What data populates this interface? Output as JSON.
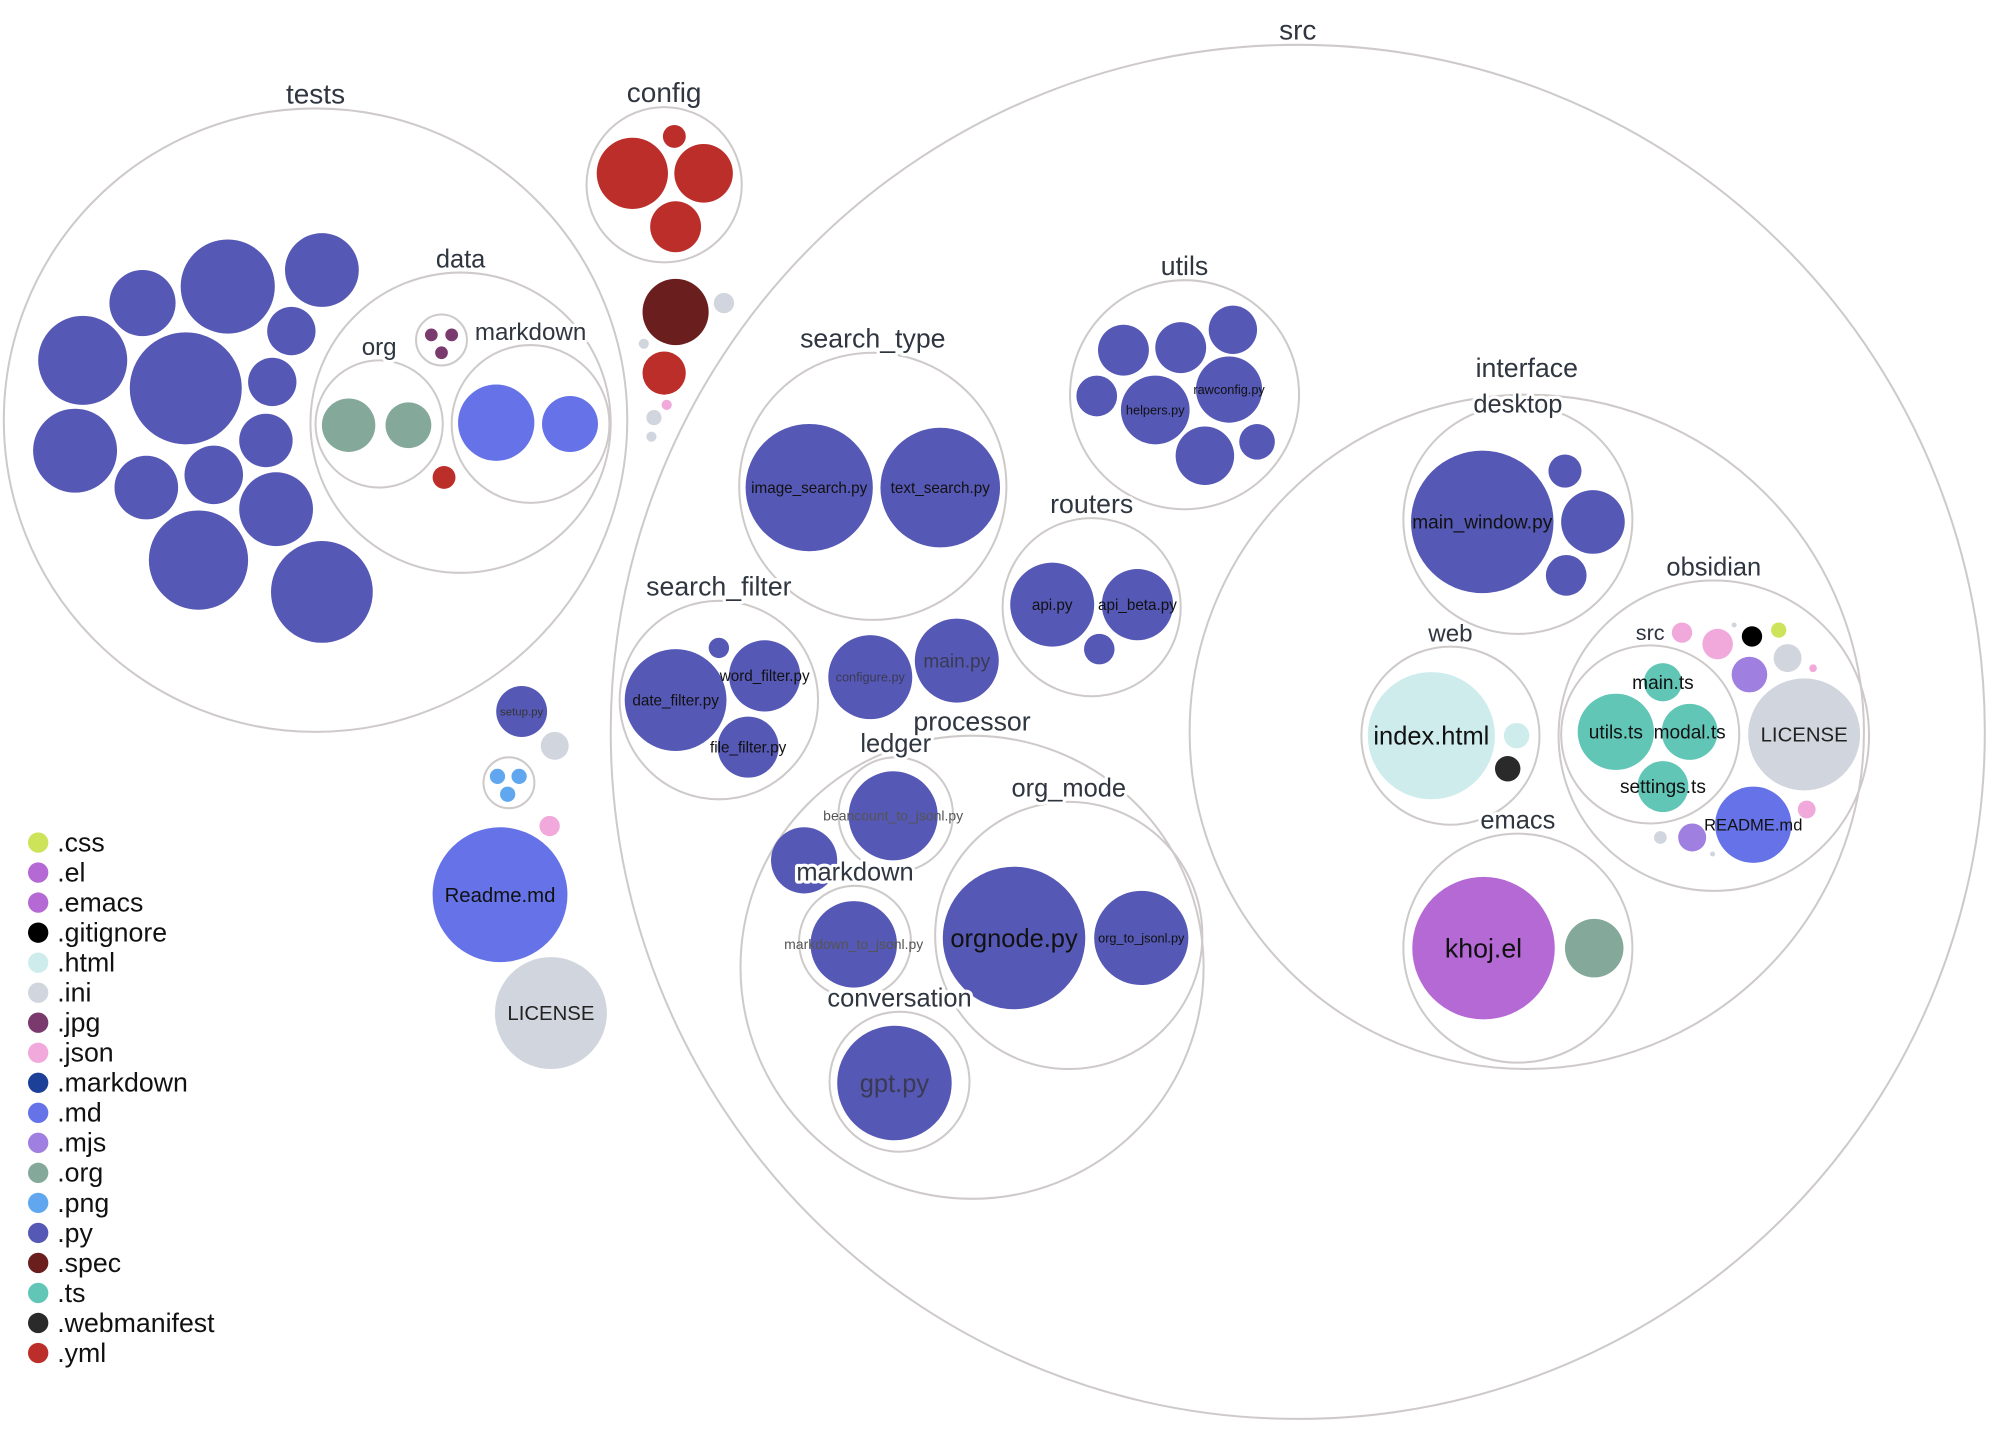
{
  "chart_data": {
    "type": "circle-packing",
    "nodes": [
      {
        "type": "dir",
        "name": "tests"
      },
      {
        "type": "dir",
        "name": "data"
      },
      {
        "type": "dir",
        "name": "org"
      },
      {
        "type": "dir",
        "name": "markdown"
      },
      {
        "type": "dir",
        "name": ""
      },
      {
        "type": "file",
        "ext": ".jpg"
      },
      {
        "type": "file",
        "ext": ".jpg"
      },
      {
        "type": "file",
        "ext": ".jpg"
      },
      {
        "type": "file",
        "ext": ".org"
      },
      {
        "type": "file",
        "ext": ".org"
      },
      {
        "type": "file",
        "ext": ".md"
      },
      {
        "type": "file",
        "ext": ".md"
      },
      {
        "type": "file",
        "ext": ".yml"
      },
      {
        "type": "file",
        "ext": ".py"
      },
      {
        "type": "file",
        "ext": ".py"
      },
      {
        "type": "file",
        "ext": ".py"
      },
      {
        "type": "file",
        "ext": ".py"
      },
      {
        "type": "file",
        "ext": ".py"
      },
      {
        "type": "file",
        "ext": ".py"
      },
      {
        "type": "file",
        "ext": ".py"
      },
      {
        "type": "file",
        "ext": ".py"
      },
      {
        "type": "file",
        "ext": ".py"
      },
      {
        "type": "file",
        "ext": ".py"
      },
      {
        "type": "file",
        "ext": ".py"
      },
      {
        "type": "file",
        "ext": ".py"
      },
      {
        "type": "file",
        "ext": ".py"
      },
      {
        "type": "file",
        "ext": ".py"
      },
      {
        "type": "dir",
        "name": "config"
      },
      {
        "type": "file",
        "ext": ".yml"
      },
      {
        "type": "file",
        "ext": ".yml"
      },
      {
        "type": "file",
        "ext": ".yml"
      },
      {
        "type": "file",
        "ext": ".yml"
      },
      {
        "type": "file",
        "ext": ".spec"
      },
      {
        "type": "file",
        "ext": ".ini"
      },
      {
        "type": "file",
        "ext": ".yml"
      },
      {
        "type": "file",
        "ext": ".ini"
      },
      {
        "type": "file",
        "ext": ".ini"
      },
      {
        "type": "file",
        "ext": ".ini"
      },
      {
        "type": "file",
        "ext": ".json"
      },
      {
        "type": "file",
        "ext": ".py",
        "name": "setup.py"
      },
      {
        "type": "file",
        "ext": ".ini"
      },
      {
        "type": "dir",
        "name": ""
      },
      {
        "type": "file",
        "ext": ".png"
      },
      {
        "type": "file",
        "ext": ".png"
      },
      {
        "type": "file",
        "ext": ".png"
      },
      {
        "type": "file",
        "ext": ".json"
      },
      {
        "type": "file",
        "ext": ".md",
        "name": "Readme.md"
      },
      {
        "type": "file",
        "ext": ".ini",
        "name": "LICENSE"
      },
      {
        "type": "dir",
        "name": "src"
      },
      {
        "type": "dir",
        "name": "search_type"
      },
      {
        "type": "file",
        "ext": ".py",
        "name": "image_search.py"
      },
      {
        "type": "file",
        "ext": ".py",
        "name": "text_search.py"
      },
      {
        "type": "dir",
        "name": "utils"
      },
      {
        "type": "file",
        "ext": ".py"
      },
      {
        "type": "file",
        "ext": ".py"
      },
      {
        "type": "file",
        "ext": ".py"
      },
      {
        "type": "file",
        "ext": ".py"
      },
      {
        "type": "file",
        "ext": ".py",
        "name": "helpers.py"
      },
      {
        "type": "file",
        "ext": ".py",
        "name": "rawconfig.py"
      },
      {
        "type": "file",
        "ext": ".py"
      },
      {
        "type": "file",
        "ext": ".py"
      },
      {
        "type": "dir",
        "name": "routers"
      },
      {
        "type": "file",
        "ext": ".py",
        "name": "api.py"
      },
      {
        "type": "file",
        "ext": ".py",
        "name": "api_beta.py"
      },
      {
        "type": "file",
        "ext": ".py"
      },
      {
        "type": "dir",
        "name": "search_filter"
      },
      {
        "type": "file",
        "ext": ".py",
        "name": "date_filter.py"
      },
      {
        "type": "file",
        "ext": ".py",
        "name": "word_filter.py"
      },
      {
        "type": "file",
        "ext": ".py",
        "name": "file_filter.py"
      },
      {
        "type": "file",
        "ext": ".py"
      },
      {
        "type": "file",
        "ext": ".py",
        "name": "configure.py"
      },
      {
        "type": "file",
        "ext": ".py",
        "name": "main.py"
      },
      {
        "type": "dir",
        "name": "processor"
      },
      {
        "type": "dir",
        "name": "ledger"
      },
      {
        "type": "file",
        "ext": ".py",
        "name": "beancount_to_jsonl.py"
      },
      {
        "type": "file",
        "ext": ".py"
      },
      {
        "type": "dir",
        "name": "markdown"
      },
      {
        "type": "file",
        "ext": ".py",
        "name": "markdown_to_jsonl.py"
      },
      {
        "type": "dir",
        "name": "org_mode"
      },
      {
        "type": "file",
        "ext": ".py",
        "name": "orgnode.py"
      },
      {
        "type": "file",
        "ext": ".py",
        "name": "org_to_jsonl.py"
      },
      {
        "type": "dir",
        "name": "conversation"
      },
      {
        "type": "file",
        "ext": ".py",
        "name": "gpt.py"
      },
      {
        "type": "dir",
        "name": "interface"
      },
      {
        "type": "dir",
        "name": "desktop"
      },
      {
        "type": "file",
        "ext": ".py",
        "name": "main_window.py"
      },
      {
        "type": "file",
        "ext": ".py"
      },
      {
        "type": "file",
        "ext": ".py"
      },
      {
        "type": "file",
        "ext": ".py"
      },
      {
        "type": "dir",
        "name": "web"
      },
      {
        "type": "file",
        "ext": ".html",
        "name": "index.html"
      },
      {
        "type": "file",
        "ext": ".html"
      },
      {
        "type": "file",
        "ext": ".webmanifest"
      },
      {
        "type": "dir",
        "name": "obsidian"
      },
      {
        "type": "dir",
        "name": "src"
      },
      {
        "type": "file",
        "ext": ".ts",
        "name": "main.ts"
      },
      {
        "type": "file",
        "ext": ".ts",
        "name": "utils.ts"
      },
      {
        "type": "file",
        "ext": ".ts",
        "name": "modal.ts"
      },
      {
        "type": "file",
        "ext": ".ts",
        "name": "settings.ts"
      },
      {
        "type": "file",
        "ext": ".ini",
        "name": "LICENSE"
      },
      {
        "type": "file",
        "ext": ".md",
        "name": "README.md"
      },
      {
        "type": "file",
        "ext": ".png"
      },
      {
        "type": "file",
        "ext": ".json"
      },
      {
        "type": "file",
        "ext": ".json"
      },
      {
        "type": "file",
        "ext": ".ini"
      },
      {
        "type": "file",
        "ext": ".gitignore"
      },
      {
        "type": "file",
        "ext": ".css"
      },
      {
        "type": "file",
        "ext": ".mjs"
      },
      {
        "type": "file",
        "ext": ".ini"
      },
      {
        "type": "file",
        "ext": ".json"
      },
      {
        "type": "file",
        "ext": ".json"
      },
      {
        "type": "file",
        "ext": ".ini"
      },
      {
        "type": "file",
        "ext": ".mjs"
      },
      {
        "type": "file",
        "ext": ".ini"
      },
      {
        "type": "dir",
        "name": "emacs"
      },
      {
        "type": "file",
        "ext": ".el",
        "name": "khoj.el"
      },
      {
        "type": "file",
        "ext": ".org"
      }
    ],
    "legend": [
      {
        "label": ".css",
        "color": "#cde35a"
      },
      {
        "label": ".el",
        "color": "#b469d4"
      },
      {
        "label": ".emacs",
        "color": "#b469d4"
      },
      {
        "label": ".gitignore",
        "color": "#000000"
      },
      {
        "label": ".html",
        "color": "#cfeced"
      },
      {
        "label": ".ini",
        "color": "#d1d6de"
      },
      {
        "label": ".jpg",
        "color": "#7a3a6e"
      },
      {
        "label": ".json",
        "color": "#f1a9db"
      },
      {
        "label": ".markdown",
        "color": "#1c3f98"
      },
      {
        "label": ".md",
        "color": "#6672e8"
      },
      {
        "label": ".mjs",
        "color": "#9f7fdf"
      },
      {
        "label": ".org",
        "color": "#84a99a"
      },
      {
        "label": ".png",
        "color": "#60a7ef"
      },
      {
        "label": ".py",
        "color": "#5558b5"
      },
      {
        "label": ".spec",
        "color": "#6b1e1e"
      },
      {
        "label": ".ts",
        "color": "#62c6b7"
      },
      {
        "label": ".webmanifest",
        "color": "#2a2a2a"
      },
      {
        "label": ".yml",
        "color": "#bc2e2a"
      }
    ]
  }
}
